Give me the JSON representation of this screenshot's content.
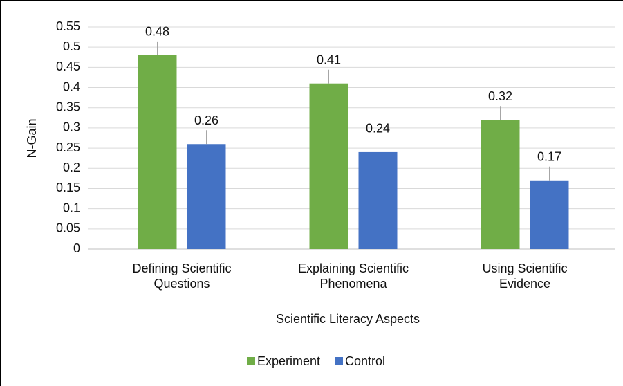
{
  "chart_data": {
    "type": "bar",
    "categories": [
      "Defining Scientific Questions",
      "Explaining Scientific Phenomena",
      "Using Scientific Evidence"
    ],
    "series": [
      {
        "name": "Experiment",
        "color": "#70ad47",
        "values": [
          0.48,
          0.41,
          0.32
        ]
      },
      {
        "name": "Control",
        "color": "#4472c4",
        "values": [
          0.26,
          0.24,
          0.17
        ]
      }
    ],
    "ylim": [
      0,
      0.55
    ],
    "yticks": [
      0,
      0.05,
      0.1,
      0.15,
      0.2,
      0.25,
      0.3,
      0.35,
      0.4,
      0.45,
      0.5,
      0.55
    ],
    "ylabel": "N-Gain",
    "xlabel": "Scientific Literacy Aspects",
    "grid": true,
    "legend": "bottom"
  }
}
